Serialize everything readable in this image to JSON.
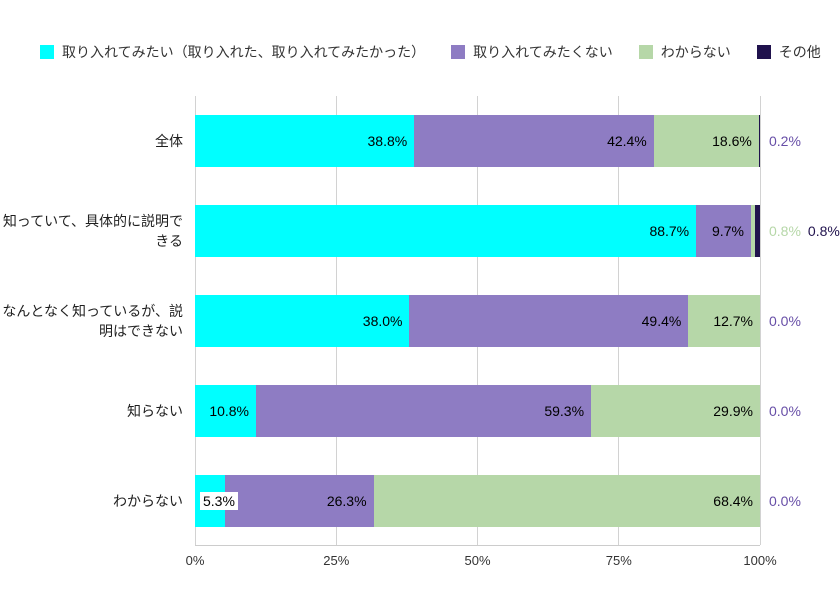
{
  "legend": {
    "items": [
      {
        "label": "取り入れてみたい（取り入れた、取り入れてみたかった）",
        "color": "#00FFFF"
      },
      {
        "label": "取り入れてみたくない",
        "color": "#8E7CC3"
      },
      {
        "label": "わからない",
        "color": "#B6D7A8"
      },
      {
        "label": "その他",
        "color": "#20124D"
      }
    ]
  },
  "chart_data": {
    "type": "bar",
    "orientation": "horizontal",
    "stacked": true,
    "grid": true,
    "legend_position": "top",
    "value_suffix": "%",
    "categories": [
      "全体",
      "知っていて、具体的に説明できる",
      "なんとなく知っているが、説明はできない",
      "知らない",
      "わからない"
    ],
    "series": [
      {
        "name": "取り入れてみたい（取り入れた、取り入れてみたかった）",
        "color": "#00FFFF",
        "values": [
          38.8,
          88.7,
          38.0,
          10.8,
          5.3
        ]
      },
      {
        "name": "取り入れてみたくない",
        "color": "#8E7CC3",
        "values": [
          42.4,
          9.7,
          49.4,
          59.3,
          26.3
        ]
      },
      {
        "name": "わからない",
        "color": "#B6D7A8",
        "values": [
          18.6,
          0.8,
          12.7,
          29.9,
          68.4
        ]
      },
      {
        "name": "その他",
        "color": "#20124D",
        "values": [
          0.2,
          0.8,
          0.0,
          0.0,
          0.0
        ]
      }
    ],
    "xticks": [
      "0%",
      "25%",
      "50%",
      "75%",
      "100%"
    ],
    "xlim": [
      0,
      100
    ],
    "outside_labels": [
      [
        {
          "text": "0.2%",
          "color": "#674EA7"
        }
      ],
      [
        {
          "text": "0.8%",
          "color": "#B6D7A8"
        },
        {
          "text": "0.8%",
          "color": "#20124D"
        }
      ],
      [
        {
          "text": "0.0%",
          "color": "#674EA7"
        }
      ],
      [
        {
          "text": "0.0%",
          "color": "#674EA7"
        }
      ],
      [
        {
          "text": "0.0%",
          "color": "#674EA7"
        }
      ]
    ]
  }
}
